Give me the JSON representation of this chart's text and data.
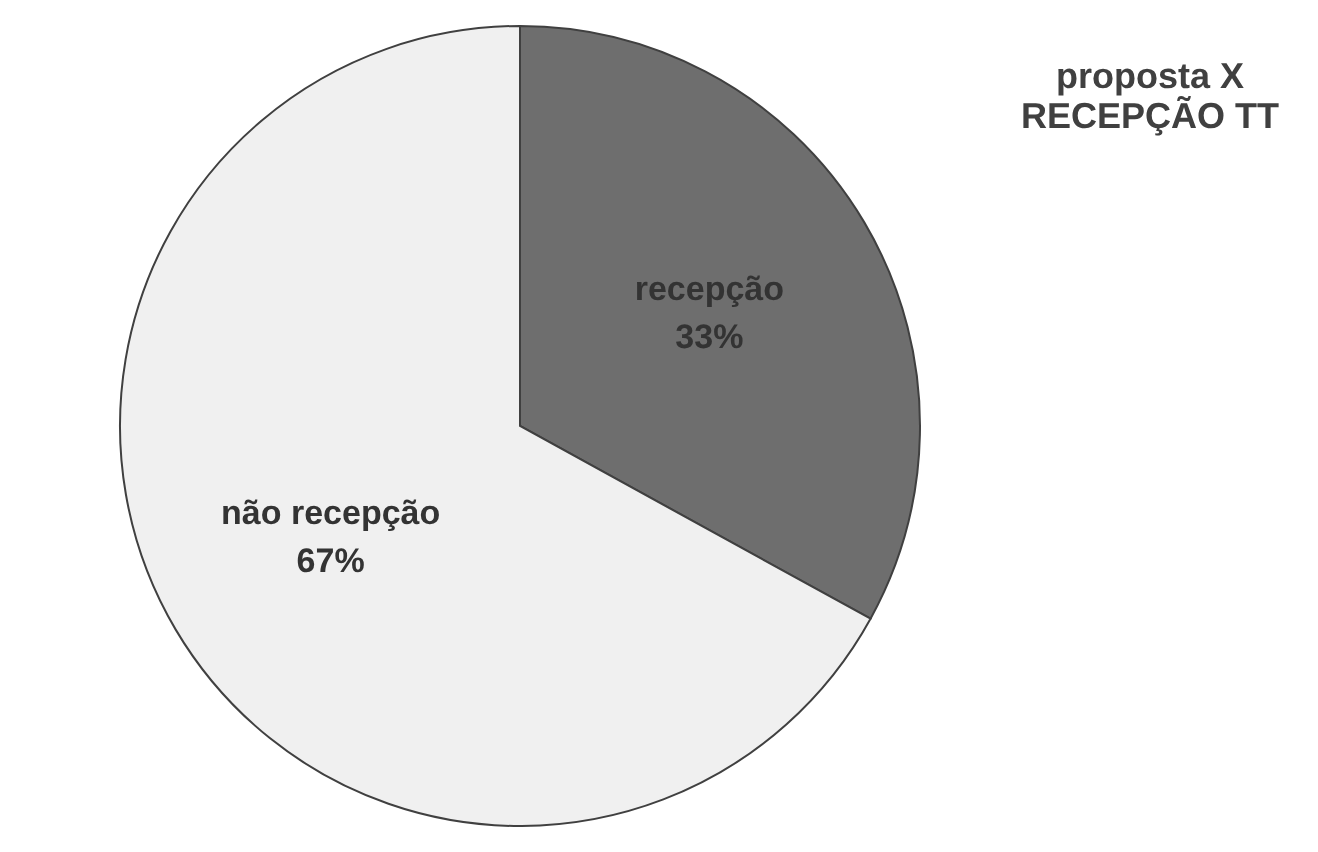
{
  "chart_data": {
    "type": "pie",
    "title": "proposta X\nRECEPÇÃO TT",
    "categories": [
      "recepção",
      "não recepção"
    ],
    "values": [
      33,
      67
    ],
    "colors": [
      "#6e6e6e",
      "#f0f0f0"
    ],
    "value_labels": [
      "33%",
      "67%"
    ],
    "legend": false
  }
}
